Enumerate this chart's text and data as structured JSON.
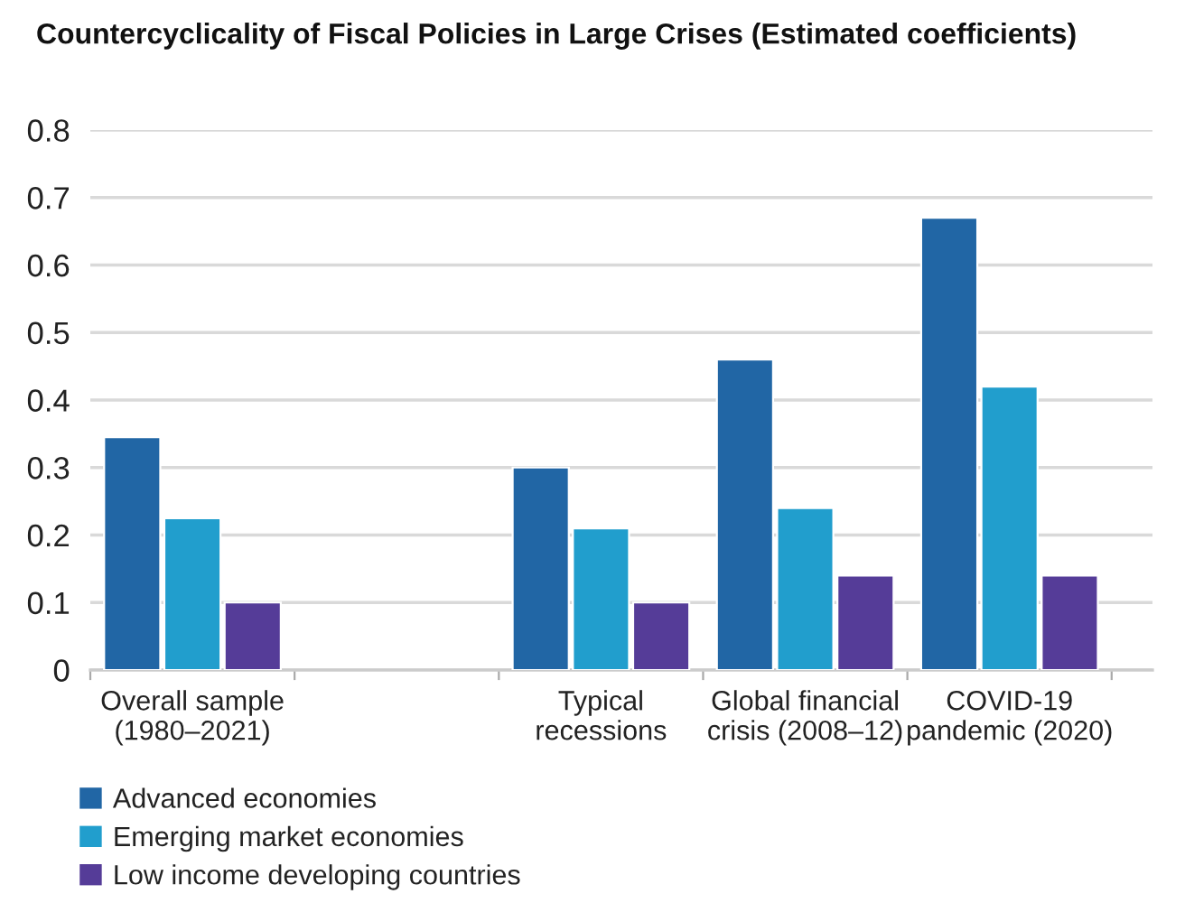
{
  "chart_data": {
    "type": "bar",
    "title": "Countercyclicality of Fiscal Policies in Large Crises (Estimated coefficients)",
    "categories": [
      "Overall sample\n(1980–2021)",
      null,
      "Typical\nrecessions",
      "Global financial\ncrisis (2008–12)",
      "COVID-19\npandemic (2020)"
    ],
    "series": [
      {
        "name": "Advanced economies",
        "color": "#2166a5",
        "values": [
          0.345,
          null,
          0.3,
          0.46,
          0.67
        ]
      },
      {
        "name": "Emerging market economies",
        "color": "#219ecd",
        "values": [
          0.225,
          null,
          0.21,
          0.24,
          0.42
        ]
      },
      {
        "name": "Low income developing countries",
        "color": "#553c98",
        "values": [
          0.1,
          null,
          0.1,
          0.14,
          0.14
        ]
      }
    ],
    "ylim": [
      0,
      0.8
    ],
    "yticks": [
      0,
      0.1,
      0.2,
      0.3,
      0.4,
      0.5,
      0.6,
      0.7,
      0.8
    ],
    "grid": "y",
    "legend": "bottom"
  }
}
